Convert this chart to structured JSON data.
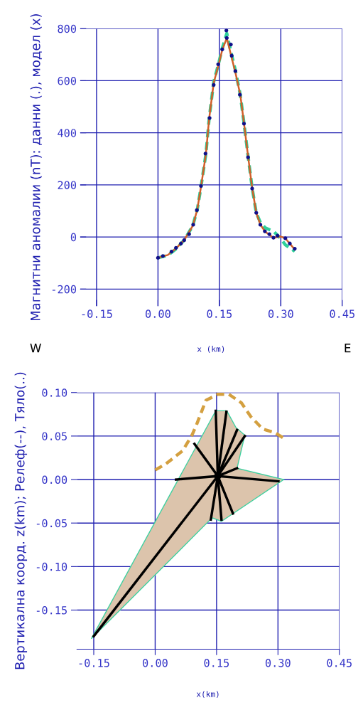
{
  "chart_data": [
    {
      "type": "line",
      "xlabel": "x (km)",
      "ylabel": "Магнитни аномалии (nT): данни (.), модел (x)",
      "annotations": [
        "W",
        "E"
      ],
      "xlim": [
        -0.19,
        0.45
      ],
      "ylim": [
        -265,
        800
      ],
      "xticks": [
        {
          "value": -0.15,
          "label": "-0.15"
        },
        {
          "value": 0,
          "label": "0.00"
        },
        {
          "value": 0.15,
          "label": "0.15"
        },
        {
          "value": 0.3,
          "label": "0.30"
        },
        {
          "value": 0.45,
          "label": "0.45"
        }
      ],
      "yticks": [
        {
          "value": -200,
          "label": "-200"
        },
        0,
        200,
        400,
        600,
        800
      ],
      "grid": true,
      "legend": false,
      "series": [
        {
          "color": "#2fd09a",
          "line_style": "dashed",
          "marker": "none",
          "x": [
            0,
            0.024,
            0.044,
            0.064,
            0.085,
            0.096,
            0.105,
            0.117,
            0.125,
            0.136,
            0.149,
            0.157,
            0.168,
            0.178,
            0.189,
            0.201,
            0.21,
            0.22,
            0.23,
            0.24,
            0.25,
            0.262,
            0.282,
            0.299,
            0.311,
            0.334
          ],
          "values": [
            -80,
            -70,
            -46,
            -12,
            43,
            106,
            192,
            319,
            455,
            595,
            672,
            725,
            782,
            712,
            640,
            546,
            437,
            310,
            188,
            93,
            56,
            35,
            22,
            -5,
            -30,
            -55
          ]
        },
        {
          "color": "#d0602a",
          "line_style": "solid",
          "marker": "none",
          "x": [
            0,
            0.024,
            0.044,
            0.064,
            0.085,
            0.096,
            0.105,
            0.117,
            0.125,
            0.136,
            0.149,
            0.157,
            0.168,
            0.178,
            0.189,
            0.201,
            0.21,
            0.22,
            0.23,
            0.24,
            0.25,
            0.262,
            0.282,
            0.299,
            0.311,
            0.334
          ],
          "values": [
            -80,
            -69,
            -44,
            -12,
            43,
            106,
            192,
            319,
            455,
            591,
            668,
            718,
            764,
            700,
            632,
            546,
            437,
            310,
            188,
            93,
            47,
            20,
            -3,
            2,
            -5,
            -48
          ]
        },
        {
          "type": "scatter",
          "color": "#10108a",
          "marker": "circle",
          "x": [
            0,
            0.012,
            0.033,
            0.044,
            0.056,
            0.064,
            0.076,
            0.086,
            0.095,
            0.105,
            0.116,
            0.126,
            0.136,
            0.147,
            0.157,
            0.167,
            0.168,
            0.178,
            0.18,
            0.189,
            0.2,
            0.21,
            0.22,
            0.23,
            0.24,
            0.25,
            0.261,
            0.272,
            0.282,
            0.292,
            0.311,
            0.322,
            0.334
          ],
          "values": [
            -80,
            -73,
            -56,
            -42,
            -25,
            -12,
            11,
            47,
            103,
            196,
            320,
            457,
            584,
            663,
            720,
            793,
            764,
            739,
            696,
            637,
            546,
            435,
            306,
            186,
            93,
            47,
            22,
            11,
            -3,
            5,
            -5,
            -25,
            -45
          ]
        }
      ]
    },
    {
      "type": "line",
      "ylabel": "Вертикална коорд. z(km); Релеф(--), Тяло(..)",
      "xlabel": "x(km)",
      "xlim": [
        -0.191,
        0.45
      ],
      "ylim": [
        -0.195,
        0.1
      ],
      "xticks": [
        {
          "value": -0.15,
          "label": "-0.15"
        },
        {
          "value": 0,
          "label": "0.00"
        },
        {
          "value": 0.15,
          "label": "0.15"
        },
        {
          "value": 0.3,
          "label": "0.30"
        },
        {
          "value": 0.45,
          "label": "0.45"
        }
      ],
      "yticks": [
        {
          "value": -0.15,
          "label": "-0.15"
        },
        {
          "value": -0.1,
          "label": "-0.10"
        },
        {
          "value": -0.05,
          "label": "-0.05"
        },
        {
          "value": 0,
          "label": "0.00"
        },
        {
          "value": 0.05,
          "label": "0.05"
        },
        {
          "value": 0.1,
          "label": "0.10"
        }
      ],
      "grid": true,
      "legend": false,
      "series": [
        {
          "type": "area",
          "color": "#dcc4ac",
          "x": [
            0.148,
            0.175,
            0.197,
            0.219,
            0.2,
            0.314,
            0.162,
            0.139,
            -0.156
          ],
          "values": [
            0.079,
            0.079,
            0.06,
            0.051,
            0.013,
            0.0,
            -0.048,
            -0.044,
            -0.183
          ]
        },
        {
          "color": "#d4a040",
          "line_style": "dashed",
          "marker": "none",
          "x": [
            0,
            0.026,
            0.067,
            0.09,
            0.101,
            0.124,
            0.153,
            0.18,
            0.211,
            0.234,
            0.263,
            0.292,
            0.316
          ],
          "values": [
            0.011,
            0.018,
            0.033,
            0.051,
            0.063,
            0.091,
            0.098,
            0.098,
            0.088,
            0.072,
            0.058,
            0.054,
            0.047
          ]
        },
        {
          "type": "line",
          "color": "#000000",
          "line_style": "solid",
          "marker": "none",
          "x": [
            0.153,
            0.148
          ],
          "values": [
            0.004,
            0.079
          ]
        },
        {
          "type": "line",
          "color": "#000000",
          "line_style": "solid",
          "marker": "none",
          "x": [
            0.153,
            0.174
          ],
          "values": [
            0.004,
            0.078
          ]
        },
        {
          "type": "line",
          "color": "#000000",
          "line_style": "solid",
          "marker": "none",
          "x": [
            0.153,
            0.2
          ],
          "values": [
            0.004,
            0.057
          ]
        },
        {
          "type": "line",
          "color": "#000000",
          "line_style": "solid",
          "marker": "none",
          "x": [
            0.153,
            0.219
          ],
          "values": [
            0.004,
            0.05
          ]
        },
        {
          "type": "line",
          "color": "#000000",
          "line_style": "solid",
          "marker": "none",
          "x": [
            0.153,
            0.2
          ],
          "values": [
            0.004,
            0.013
          ]
        },
        {
          "type": "line",
          "color": "#000000",
          "line_style": "solid",
          "marker": "none",
          "x": [
            0.153,
            0.301
          ],
          "values": [
            0.004,
            -0.002
          ]
        },
        {
          "type": "line",
          "color": "#000000",
          "line_style": "solid",
          "marker": "none",
          "x": [
            0.153,
            0.19
          ],
          "values": [
            0.004,
            -0.039
          ]
        },
        {
          "type": "line",
          "color": "#000000",
          "line_style": "solid",
          "marker": "none",
          "x": [
            0.153,
            0.162
          ],
          "values": [
            0.004,
            -0.046
          ]
        },
        {
          "type": "line",
          "color": "#000000",
          "line_style": "solid",
          "marker": "none",
          "x": [
            0.153,
            0.136
          ],
          "values": [
            0.004,
            -0.046
          ]
        },
        {
          "type": "line",
          "color": "#000000",
          "line_style": "solid",
          "marker": "none",
          "x": [
            0.153,
            0.096
          ],
          "values": [
            0.004,
            0.041
          ]
        },
        {
          "type": "line",
          "color": "#000000",
          "line_style": "solid",
          "marker": "none",
          "x": [
            0.153,
            0.051
          ],
          "values": [
            0.004,
            0.0
          ]
        },
        {
          "type": "line",
          "color": "#000000",
          "line_style": "solid",
          "marker": "none",
          "x": [
            0.153,
            -0.15
          ],
          "values": [
            0.004,
            -0.18
          ]
        },
        {
          "type": "scatter",
          "color": "#000000",
          "marker": "circle",
          "x": [
            0.153
          ],
          "values": [
            0.004
          ]
        }
      ]
    }
  ]
}
